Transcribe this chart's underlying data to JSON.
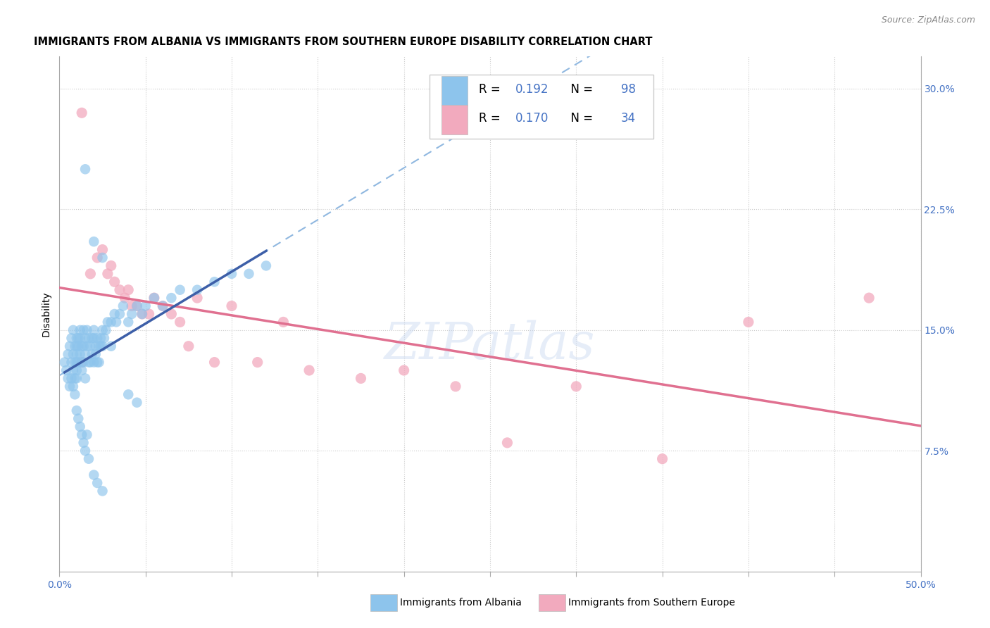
{
  "title": "IMMIGRANTS FROM ALBANIA VS IMMIGRANTS FROM SOUTHERN EUROPE DISABILITY CORRELATION CHART",
  "source": "Source: ZipAtlas.com",
  "ylabel": "Disability",
  "xlim": [
    0.0,
    0.5
  ],
  "ylim": [
    0.0,
    0.32
  ],
  "xtick_positions": [
    0.0,
    0.05,
    0.1,
    0.15,
    0.2,
    0.25,
    0.3,
    0.35,
    0.4,
    0.45,
    0.5
  ],
  "ytick_positions": [
    0.0,
    0.075,
    0.15,
    0.225,
    0.3
  ],
  "ytick_labels": [
    "",
    "7.5%",
    "15.0%",
    "22.5%",
    "30.0%"
  ],
  "watermark_text": "ZIPatlas",
  "albania_dot_color": "#8DC4EC",
  "southern_europe_dot_color": "#F2AABE",
  "albania_line_color": "#3D5FA8",
  "southern_europe_line_color": "#E07090",
  "dashed_line_color": "#90B8E0",
  "albania_R": 0.192,
  "albania_N": 98,
  "southern_europe_R": 0.17,
  "southern_europe_N": 34,
  "title_fontsize": 10.5,
  "tick_fontsize": 10,
  "legend_fontsize": 12,
  "axis_fontsize": 10,
  "albania_x": [
    0.003,
    0.004,
    0.005,
    0.005,
    0.006,
    0.006,
    0.007,
    0.007,
    0.007,
    0.008,
    0.008,
    0.008,
    0.009,
    0.009,
    0.009,
    0.01,
    0.01,
    0.01,
    0.01,
    0.01,
    0.01,
    0.011,
    0.011,
    0.011,
    0.012,
    0.012,
    0.012,
    0.013,
    0.013,
    0.013,
    0.014,
    0.014,
    0.014,
    0.015,
    0.015,
    0.015,
    0.016,
    0.016,
    0.017,
    0.017,
    0.018,
    0.018,
    0.019,
    0.019,
    0.02,
    0.02,
    0.02,
    0.021,
    0.021,
    0.022,
    0.022,
    0.023,
    0.023,
    0.024,
    0.024,
    0.025,
    0.025,
    0.026,
    0.027,
    0.028,
    0.03,
    0.03,
    0.032,
    0.033,
    0.035,
    0.037,
    0.04,
    0.042,
    0.045,
    0.048,
    0.05,
    0.055,
    0.06,
    0.065,
    0.07,
    0.08,
    0.09,
    0.1,
    0.11,
    0.12,
    0.04,
    0.045,
    0.015,
    0.02,
    0.025,
    0.008,
    0.009,
    0.01,
    0.011,
    0.012,
    0.013,
    0.014,
    0.015,
    0.016,
    0.017,
    0.02,
    0.022,
    0.025
  ],
  "albania_y": [
    0.13,
    0.125,
    0.135,
    0.12,
    0.14,
    0.115,
    0.13,
    0.12,
    0.145,
    0.135,
    0.125,
    0.15,
    0.14,
    0.13,
    0.12,
    0.145,
    0.14,
    0.135,
    0.13,
    0.125,
    0.12,
    0.145,
    0.14,
    0.13,
    0.15,
    0.145,
    0.135,
    0.14,
    0.13,
    0.125,
    0.15,
    0.14,
    0.13,
    0.145,
    0.135,
    0.12,
    0.15,
    0.14,
    0.145,
    0.13,
    0.14,
    0.13,
    0.145,
    0.135,
    0.15,
    0.145,
    0.13,
    0.14,
    0.135,
    0.145,
    0.13,
    0.14,
    0.13,
    0.145,
    0.14,
    0.15,
    0.14,
    0.145,
    0.15,
    0.155,
    0.155,
    0.14,
    0.16,
    0.155,
    0.16,
    0.165,
    0.155,
    0.16,
    0.165,
    0.16,
    0.165,
    0.17,
    0.165,
    0.17,
    0.175,
    0.175,
    0.18,
    0.185,
    0.185,
    0.19,
    0.11,
    0.105,
    0.25,
    0.205,
    0.195,
    0.115,
    0.11,
    0.1,
    0.095,
    0.09,
    0.085,
    0.08,
    0.075,
    0.085,
    0.07,
    0.06,
    0.055,
    0.05
  ],
  "southern_europe_x": [
    0.013,
    0.013,
    0.018,
    0.022,
    0.025,
    0.028,
    0.03,
    0.032,
    0.035,
    0.038,
    0.04,
    0.042,
    0.045,
    0.048,
    0.052,
    0.055,
    0.06,
    0.065,
    0.07,
    0.075,
    0.08,
    0.09,
    0.1,
    0.115,
    0.13,
    0.145,
    0.175,
    0.2,
    0.23,
    0.26,
    0.3,
    0.35,
    0.4,
    0.47
  ],
  "southern_europe_y": [
    0.285,
    0.13,
    0.185,
    0.195,
    0.2,
    0.185,
    0.19,
    0.18,
    0.175,
    0.17,
    0.175,
    0.165,
    0.165,
    0.16,
    0.16,
    0.17,
    0.165,
    0.16,
    0.155,
    0.14,
    0.17,
    0.13,
    0.165,
    0.13,
    0.155,
    0.125,
    0.12,
    0.125,
    0.115,
    0.08,
    0.115,
    0.07,
    0.155,
    0.17
  ]
}
